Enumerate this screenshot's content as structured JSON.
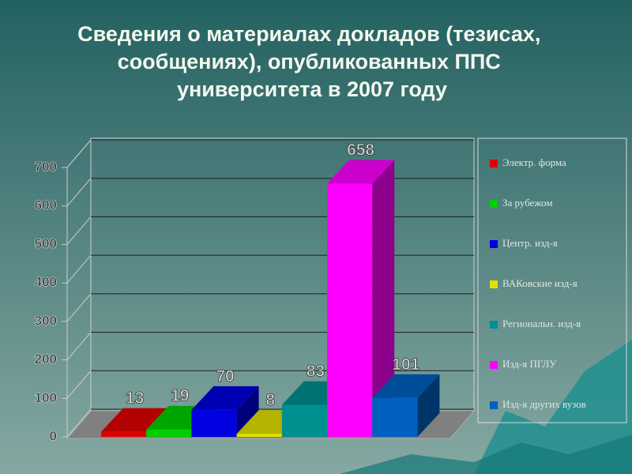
{
  "chart_data": {
    "type": "bar3d",
    "title": "Сведения о материалах докладов (тезисах, сообщениях), опубликованных ППС университета в 2007 году",
    "series": [
      {
        "name": "Электр. форма",
        "color": "#e00000",
        "values": [
          13
        ]
      },
      {
        "name": "За рубежом",
        "color": "#00d000",
        "values": [
          19
        ]
      },
      {
        "name": "Центр. изд-я",
        "color": "#0000e0",
        "values": [
          70
        ]
      },
      {
        "name": "ВАКовские изд-я",
        "color": "#e0e000",
        "values": [
          8
        ]
      },
      {
        "name": "Региональн. изд-я",
        "color": "#009090",
        "values": [
          83
        ]
      },
      {
        "name": "Изд-я ПГЛУ",
        "color": "#ff00ff",
        "values": [
          658
        ]
      },
      {
        "name": "Изд-я других вузов",
        "color": "#0060c0",
        "values": [
          101
        ]
      }
    ],
    "ylim": [
      0,
      700
    ],
    "yticks": [
      0,
      100,
      200,
      300,
      400,
      500,
      600,
      700
    ],
    "grid": true,
    "legend": "right"
  }
}
